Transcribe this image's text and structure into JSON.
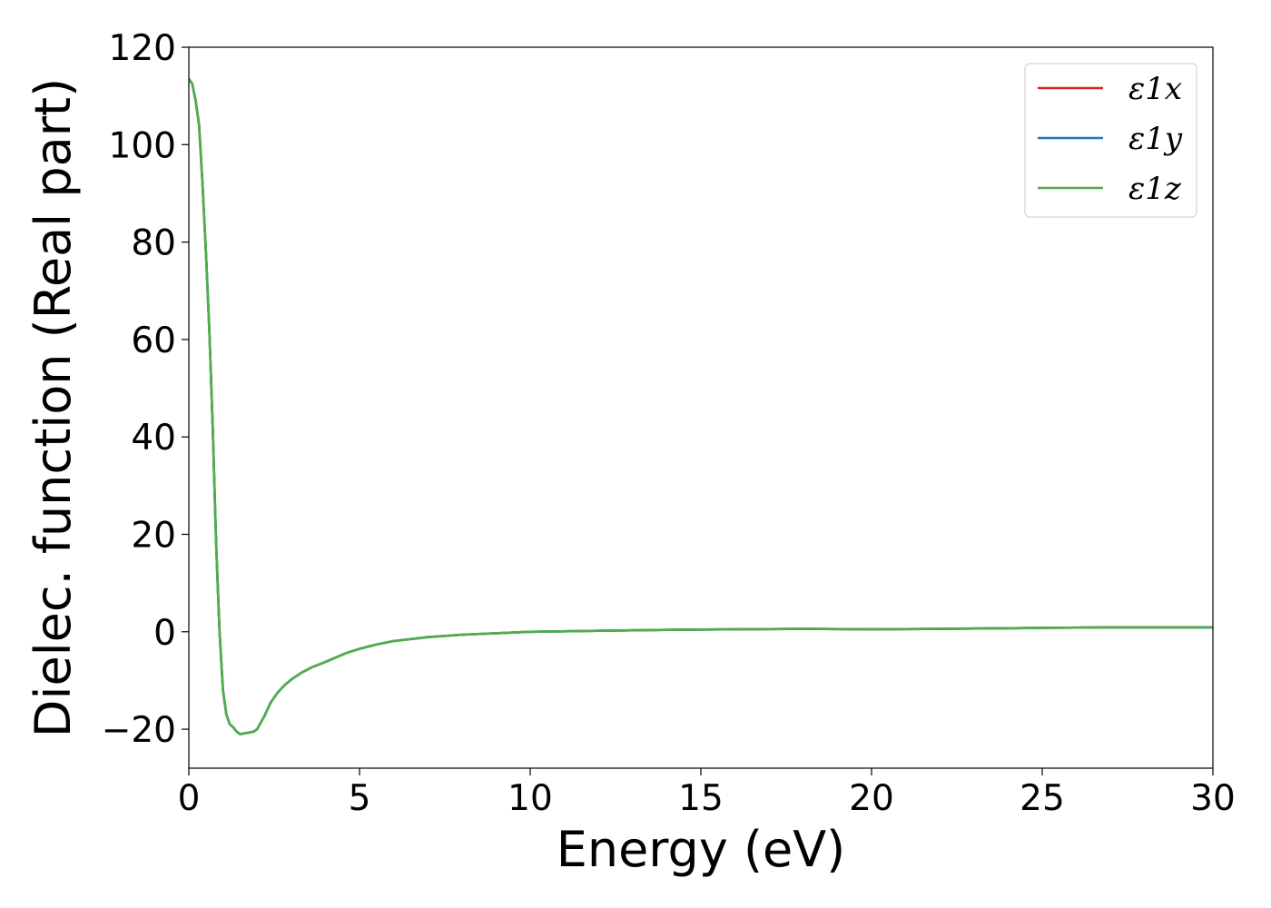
{
  "chart_data": {
    "type": "line",
    "title": "",
    "xlabel": "Energy (eV)",
    "ylabel": "Dielec. function (Real part)",
    "xlim": [
      0,
      30
    ],
    "ylim": [
      -28,
      120
    ],
    "xticks": [
      0,
      5,
      10,
      15,
      20,
      25,
      30
    ],
    "yticks": [
      -20,
      0,
      20,
      40,
      60,
      80,
      100,
      120
    ],
    "xtick_labels": [
      "0",
      "5",
      "10",
      "15",
      "20",
      "25",
      "30"
    ],
    "ytick_labels": [
      "−20",
      "0",
      "20",
      "40",
      "60",
      "80",
      "100",
      "120"
    ],
    "grid": false,
    "legend_position": "top-right",
    "x": [
      0.0,
      0.1,
      0.2,
      0.3,
      0.4,
      0.5,
      0.6,
      0.7,
      0.8,
      0.9,
      1.0,
      1.1,
      1.2,
      1.3,
      1.4,
      1.5,
      1.6,
      1.75,
      1.9,
      2.0,
      2.2,
      2.4,
      2.6,
      2.8,
      3.0,
      3.3,
      3.6,
      4.0,
      4.3,
      4.6,
      5.0,
      5.5,
      6.0,
      7.0,
      8.0,
      9.0,
      10.0,
      12.0,
      14.0,
      16.0,
      18.0,
      20.0,
      22.0,
      25.0,
      27.0,
      30.0
    ],
    "series": [
      {
        "name": "ε1x",
        "color": "#d62728",
        "values": [
          113.5,
          112.5,
          109.0,
          104.0,
          92.0,
          78.0,
          62.0,
          42.0,
          18.0,
          0.0,
          -12.0,
          -17.0,
          -19.0,
          -19.6,
          -20.5,
          -21.0,
          -20.9,
          -20.7,
          -20.5,
          -20.0,
          -17.5,
          -14.5,
          -12.5,
          -11.0,
          -9.8,
          -8.4,
          -7.3,
          -6.2,
          -5.3,
          -4.4,
          -3.5,
          -2.6,
          -1.9,
          -1.1,
          -0.6,
          -0.3,
          0.0,
          0.2,
          0.4,
          0.5,
          0.6,
          0.5,
          0.6,
          0.8,
          0.9,
          0.9
        ]
      },
      {
        "name": "ε1y",
        "color": "#1f77b4",
        "values": [
          113.5,
          112.5,
          109.0,
          104.0,
          92.0,
          78.0,
          62.0,
          42.0,
          18.0,
          0.0,
          -12.0,
          -17.0,
          -19.0,
          -19.6,
          -20.5,
          -21.0,
          -20.9,
          -20.7,
          -20.5,
          -20.0,
          -17.5,
          -14.5,
          -12.5,
          -11.0,
          -9.8,
          -8.4,
          -7.3,
          -6.2,
          -5.3,
          -4.4,
          -3.5,
          -2.6,
          -1.9,
          -1.1,
          -0.6,
          -0.3,
          0.0,
          0.2,
          0.4,
          0.5,
          0.6,
          0.5,
          0.6,
          0.8,
          0.9,
          0.9
        ]
      },
      {
        "name": "ε1z",
        "color": "#4daf4a",
        "values": [
          113.5,
          112.5,
          109.0,
          104.0,
          92.0,
          78.0,
          62.0,
          42.0,
          18.0,
          0.0,
          -12.0,
          -17.0,
          -19.0,
          -19.6,
          -20.5,
          -21.0,
          -20.9,
          -20.7,
          -20.5,
          -20.0,
          -17.5,
          -14.5,
          -12.5,
          -11.0,
          -9.8,
          -8.4,
          -7.3,
          -6.2,
          -5.3,
          -4.4,
          -3.5,
          -2.6,
          -1.9,
          -1.1,
          -0.6,
          -0.3,
          0.0,
          0.2,
          0.4,
          0.5,
          0.6,
          0.5,
          0.6,
          0.8,
          0.9,
          0.9
        ]
      }
    ]
  }
}
